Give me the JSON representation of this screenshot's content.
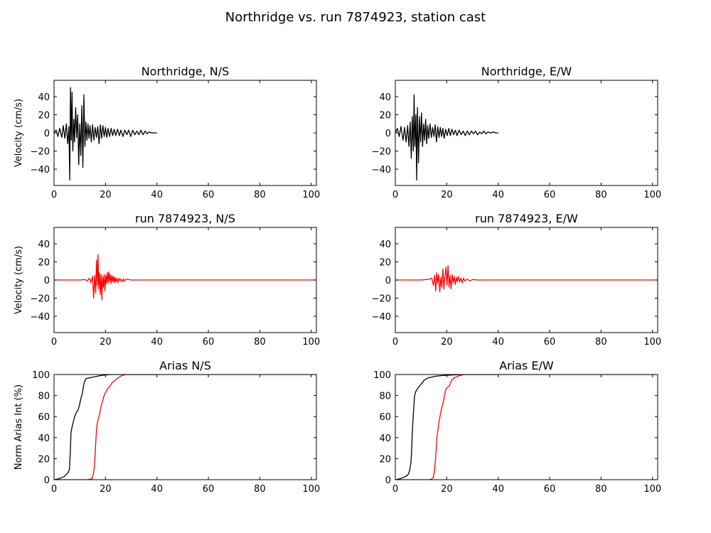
{
  "figure": {
    "title": "Northridge vs. run 7874923, station cast"
  },
  "chart_data": [
    {
      "id": "northridge-ns",
      "type": "line",
      "title": "Northridge, N/S",
      "xlabel": "",
      "ylabel": "Velocity (cm/s)",
      "xlim": [
        0,
        102
      ],
      "ylim": [
        -58,
        58
      ],
      "xticks": [
        "0",
        "20",
        "40",
        "60",
        "80",
        "100"
      ],
      "yticks": [
        "−40",
        "−20",
        "0",
        "20",
        "40"
      ],
      "grid": false,
      "series": [
        {
          "color": "#000000",
          "x": [
            0,
            0.8,
            1.5,
            2.2,
            3,
            3.6,
            4.2,
            4.8,
            5.3,
            5.8,
            6.1,
            6.4,
            6.7,
            7,
            7.3,
            7.7,
            8,
            8.4,
            8.8,
            9.2,
            9.6,
            10,
            10.4,
            10.8,
            11.2,
            11.6,
            12,
            12.4,
            12.8,
            13.2,
            13.6,
            14,
            14.5,
            15,
            15.5,
            16,
            16.5,
            17,
            17.5,
            18,
            18.5,
            19,
            19.5,
            20,
            20.5,
            21,
            21.6,
            22.2,
            22.8,
            23.4,
            24,
            24.7,
            25.4,
            26,
            26.8,
            27.5,
            28.3,
            29,
            29.8,
            30.6,
            31.4,
            32.2,
            33,
            33.8,
            34.6,
            35.4,
            36.2,
            37,
            38,
            39,
            40
          ],
          "y": [
            0,
            3,
            -4,
            5,
            -5,
            8,
            -6,
            10,
            -12,
            7,
            -52,
            50,
            -8,
            45,
            -20,
            15,
            -10,
            28,
            -5,
            20,
            -35,
            10,
            -25,
            30,
            -38,
            42,
            -15,
            12,
            -8,
            10,
            -6,
            8,
            -10,
            9,
            -8,
            6,
            -5,
            7,
            -12,
            9,
            -6,
            8,
            -4,
            6,
            -5,
            5,
            -4,
            5,
            -3,
            4,
            -3,
            4,
            -3,
            3,
            -4,
            3,
            -2,
            3,
            -4,
            3,
            -2,
            2,
            -2,
            3,
            -2,
            2,
            -1,
            1,
            0,
            0,
            0
          ]
        }
      ]
    },
    {
      "id": "northridge-ew",
      "type": "line",
      "title": "Northridge, E/W",
      "xlabel": "",
      "ylabel": "",
      "xlim": [
        0,
        102
      ],
      "ylim": [
        -58,
        58
      ],
      "xticks": [
        "0",
        "20",
        "40",
        "60",
        "80",
        "100"
      ],
      "yticks": [
        "−40",
        "−20",
        "0",
        "20",
        "40"
      ],
      "grid": false,
      "series": [
        {
          "color": "#000000",
          "x": [
            0,
            0.8,
            1.5,
            2.2,
            3,
            3.6,
            4.2,
            4.8,
            5.3,
            5.8,
            6.2,
            6.6,
            7,
            7.3,
            7.6,
            8,
            8.3,
            8.6,
            9,
            9.4,
            9.8,
            10.2,
            10.6,
            11,
            11.4,
            11.8,
            12.2,
            12.6,
            13,
            13.5,
            14,
            14.5,
            15,
            15.5,
            16,
            16.5,
            17,
            17.5,
            18,
            18.5,
            19,
            19.6,
            20.2,
            20.8,
            21.4,
            22,
            22.7,
            23.4,
            24,
            24.8,
            25.6,
            26.4,
            27.2,
            28,
            28.8,
            29.6,
            30.4,
            31.2,
            32,
            32.8,
            33.6,
            34.4,
            35.2,
            36,
            37,
            38,
            39,
            40
          ],
          "y": [
            0,
            5,
            -4,
            7,
            -8,
            6,
            -10,
            8,
            -15,
            12,
            -28,
            18,
            -20,
            42,
            -15,
            20,
            -52,
            28,
            -33,
            18,
            -10,
            22,
            -15,
            10,
            -8,
            15,
            -12,
            8,
            -6,
            10,
            -5,
            6,
            -4,
            9,
            -10,
            7,
            -5,
            6,
            -4,
            5,
            -6,
            4,
            -3,
            5,
            -3,
            4,
            -2,
            3,
            -3,
            3,
            -2,
            2,
            -3,
            2,
            -2,
            2,
            -1,
            2,
            -2,
            1,
            -1,
            2,
            -1,
            1,
            0,
            1,
            0,
            0
          ]
        }
      ]
    },
    {
      "id": "run-ns",
      "type": "line",
      "title": "run 7874923, N/S",
      "xlabel": "",
      "ylabel": "Velocity (cm/s)",
      "xlim": [
        0,
        102
      ],
      "ylim": [
        -58,
        58
      ],
      "xticks": [
        "0",
        "20",
        "40",
        "60",
        "80",
        "100"
      ],
      "yticks": [
        "−40",
        "−20",
        "0",
        "20",
        "40"
      ],
      "grid": false,
      "series": [
        {
          "color": "#ff0000",
          "x": [
            0,
            5,
            10,
            12,
            13,
            13.8,
            14.4,
            15,
            15.4,
            15.8,
            16.2,
            16.5,
            16.8,
            17.1,
            17.4,
            17.7,
            18,
            18.3,
            18.6,
            18.9,
            19.2,
            19.5,
            19.8,
            20.1,
            20.4,
            20.7,
            21,
            21.3,
            21.6,
            21.9,
            22.2,
            22.5,
            22.8,
            23.1,
            23.4,
            23.7,
            24,
            24.4,
            24.8,
            25.2,
            25.6,
            26,
            26.5,
            27,
            27.5,
            28,
            29,
            30,
            32,
            35,
            40,
            60,
            80,
            102
          ],
          "y": [
            0,
            0,
            0,
            0.5,
            -1,
            2,
            -3,
            4,
            -20,
            5,
            -14,
            22,
            -6,
            28,
            -10,
            8,
            -16,
            6,
            -22,
            4,
            -8,
            6,
            -12,
            5,
            -4,
            8,
            -3,
            9,
            -2,
            6,
            -4,
            5,
            -2,
            4,
            -3,
            3,
            -2,
            2,
            -3,
            2,
            -1,
            1,
            -2,
            1,
            -1,
            1,
            0.5,
            0,
            0,
            0,
            0,
            0,
            0,
            0
          ]
        }
      ]
    },
    {
      "id": "run-ew",
      "type": "line",
      "title": "run 7874923, E/W",
      "xlabel": "",
      "ylabel": "",
      "xlim": [
        0,
        102
      ],
      "ylim": [
        -58,
        58
      ],
      "xticks": [
        "0",
        "20",
        "40",
        "60",
        "80",
        "100"
      ],
      "yticks": [
        "−40",
        "−20",
        "0",
        "20",
        "40"
      ],
      "grid": false,
      "series": [
        {
          "color": "#ff0000",
          "x": [
            0,
            5,
            10,
            12,
            13.5,
            14.2,
            14.8,
            15.3,
            15.7,
            16.1,
            16.5,
            16.9,
            17.3,
            17.7,
            18.1,
            18.5,
            18.9,
            19.3,
            19.7,
            20.1,
            20.5,
            20.9,
            21.3,
            21.7,
            22.1,
            22.5,
            22.9,
            23.3,
            23.7,
            24.1,
            24.5,
            25,
            25.5,
            26,
            26.5,
            27,
            28,
            29,
            30,
            32,
            35,
            40,
            60,
            80,
            102
          ],
          "y": [
            0,
            0,
            0,
            0.5,
            1,
            2,
            -6,
            5,
            -12,
            8,
            -4,
            6,
            -13,
            3,
            -8,
            12,
            -10,
            4,
            14,
            -6,
            16,
            -8,
            5,
            -10,
            6,
            -3,
            4,
            -5,
            3,
            -2,
            4,
            -2,
            2,
            -3,
            2,
            -1,
            1,
            -1,
            0.5,
            0,
            0,
            0,
            0,
            0,
            0
          ]
        }
      ]
    },
    {
      "id": "arias-ns",
      "type": "line",
      "title": "Arias N/S",
      "xlabel": "",
      "ylabel": "Norm Arias Int (%)",
      "xlim": [
        0,
        102
      ],
      "ylim": [
        0,
        100
      ],
      "xticks": [
        "0",
        "20",
        "40",
        "60",
        "80",
        "100"
      ],
      "yticks": [
        "0",
        "20",
        "40",
        "60",
        "80",
        "100"
      ],
      "grid": false,
      "series": [
        {
          "color": "#000000",
          "x": [
            0,
            2,
            3,
            4,
            4.8,
            5.5,
            6,
            6.3,
            6.6,
            7,
            7.5,
            8,
            8.7,
            9.3,
            10,
            10.5,
            11,
            11.5,
            12,
            12.4,
            13,
            14,
            15,
            16,
            17,
            18,
            19,
            20,
            21,
            22,
            25,
            30,
            35,
            40
          ],
          "y": [
            0,
            1,
            2,
            3,
            5,
            7,
            10,
            25,
            45,
            50,
            55,
            60,
            64,
            66,
            72,
            78,
            82,
            90,
            94,
            96,
            96.5,
            97,
            97.5,
            98,
            98.5,
            99,
            99.3,
            99.6,
            99.8,
            100,
            100,
            100,
            100,
            100
          ]
        },
        {
          "color": "#ff0000",
          "x": [
            0,
            10,
            13,
            14,
            14.8,
            15.3,
            15.8,
            16.2,
            16.6,
            17,
            17.5,
            18,
            18.5,
            19,
            19.5,
            20,
            20.5,
            21,
            21.5,
            22,
            22.5,
            23,
            24,
            25,
            26,
            27,
            28,
            30,
            35,
            40,
            60,
            80,
            102
          ],
          "y": [
            0,
            0,
            0,
            0.5,
            1,
            5,
            15,
            35,
            50,
            56,
            60,
            66,
            72,
            76,
            80,
            83,
            85,
            87,
            88,
            90,
            92,
            93,
            95,
            97,
            98.5,
            99.5,
            100,
            100,
            100,
            100,
            100,
            100,
            100
          ]
        }
      ]
    },
    {
      "id": "arias-ew",
      "type": "line",
      "title": "Arias E/W",
      "xlabel": "",
      "ylabel": "",
      "xlim": [
        0,
        102
      ],
      "ylim": [
        0,
        100
      ],
      "xticks": [
        "0",
        "20",
        "40",
        "60",
        "80",
        "100"
      ],
      "yticks": [
        "0",
        "20",
        "40",
        "60",
        "80",
        "100"
      ],
      "grid": false,
      "series": [
        {
          "color": "#000000",
          "x": [
            0,
            2,
            3,
            4,
            5,
            5.5,
            6,
            6.3,
            6.6,
            7,
            7.5,
            8,
            8.5,
            9,
            9.5,
            10,
            10.5,
            11,
            11.5,
            12,
            13,
            14,
            15,
            16,
            18,
            20,
            22,
            24,
            27,
            30,
            35,
            40
          ],
          "y": [
            0,
            1,
            2,
            3,
            5,
            8,
            15,
            25,
            45,
            62,
            80,
            84,
            86,
            88,
            89,
            91,
            92,
            94,
            95,
            96,
            97,
            97.5,
            98,
            98.5,
            99,
            99.3,
            99.6,
            99.8,
            100,
            100,
            100,
            100
          ]
        },
        {
          "color": "#ff0000",
          "x": [
            0,
            10,
            13,
            14,
            14.8,
            15.3,
            15.8,
            16.2,
            16.6,
            17,
            17.5,
            18,
            18.5,
            19,
            19.5,
            20,
            20.5,
            21,
            21.5,
            22,
            23,
            24,
            25,
            26,
            27,
            28,
            30,
            35,
            40,
            60,
            80,
            102
          ],
          "y": [
            0,
            0,
            0,
            0.5,
            2,
            10,
            25,
            40,
            48,
            55,
            62,
            68,
            72,
            78,
            85,
            87,
            88,
            89,
            92,
            95,
            97,
            98,
            99,
            99.5,
            100,
            100,
            100,
            100,
            100,
            100,
            100,
            100
          ]
        }
      ]
    }
  ]
}
